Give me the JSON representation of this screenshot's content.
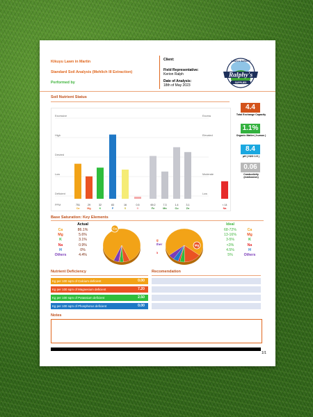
{
  "header": {
    "lawn": "Kikuyu Lawn in Martin",
    "analysis": "Standard Soil Analysis (Mehlich III Extraction)",
    "performed_by": "Performed by",
    "client_label": "Client:",
    "rep_label": "Field Representative:",
    "rep_value": "Kerion Ralph",
    "date_label": "Date of Analysis:",
    "date_value": "18th of May 2023",
    "logo": {
      "top": "LAWN & GARDEN",
      "main": "Ralphy's",
      "bottom": "SUPPLIES"
    }
  },
  "nutrient_status": {
    "title": "Soil Nutrient Status",
    "left_levels": [
      "Excessive",
      "High",
      "Desired",
      "Low",
      "Deficient",
      "PPM"
    ],
    "right_levels": [
      "Excess",
      "Elevated",
      "Moderate",
      "Low"
    ],
    "colors": {
      "Ca": "#f2a317",
      "Mg": "#ea5323",
      "K": "#2fbd3c",
      "P": "#1f78c6",
      "S": "#f5ec76",
      "B": "#f4a4a4",
      "Fe": "#cacbd2",
      "Mn": "#c4c5cc",
      "Cu": "#c7c8cf",
      "Zn": "#c1c2c9",
      "Na": "#e62a2a"
    }
  },
  "chart_data": {
    "type": "bar",
    "categories": [
      "Ca",
      "Mg",
      "K",
      "P",
      "S",
      "B",
      "Fe",
      "Mn",
      "Cu",
      "Zn",
      "Na"
    ],
    "ppm": [
      "751",
      "29",
      "32",
      "83",
      "16",
      "0.5",
      "69.2",
      "7.3",
      "1.4",
      "3.1",
      "< 14"
    ],
    "levels": [
      1.8,
      1.15,
      1.6,
      3.3,
      1.5,
      0.1,
      2.2,
      1.4,
      2.65,
      2.4,
      0.9
    ],
    "level_scale": [
      "Deficient",
      "Low",
      "Desired",
      "High",
      "Excessive"
    ]
  },
  "kpis": [
    {
      "value": "4.4",
      "label": "Total Exchange Capacity",
      "color": "#d3531b"
    },
    {
      "value": "1.1%",
      "label": "Organic Matter ( humus )",
      "color": "#33b13f"
    },
    {
      "value": "8.4",
      "label": "pH ( H2O 1:5 )",
      "color": "#1ba8e0"
    },
    {
      "value": "0.06",
      "label": "Conductivity (mmhos/cm)",
      "color": "#b8b8b8"
    }
  ],
  "base_saturation": {
    "title": "Base Saturation: Key Elements",
    "actual_header": "Actual",
    "ideal_header": "Ideal",
    "elements": [
      {
        "name": "Ca",
        "actual": "86.1%",
        "ideal": "68-72%",
        "color": "#f2a317"
      },
      {
        "name": "Mg",
        "actual": "5.6%",
        "ideal": "13-16%",
        "color": "#ea5323"
      },
      {
        "name": "K",
        "actual": "3.1%",
        "ideal": "3-5%",
        "color": "#2fbd3c"
      },
      {
        "name": "Na",
        "actual": "0.9%",
        "ideal": "<3%",
        "color": "#e62a2a"
      },
      {
        "name": "H",
        "actual": "0%",
        "ideal": "4.5%",
        "color": "#1f78c6"
      },
      {
        "name": "Others",
        "actual": "4.4%",
        "ideal": "5%",
        "color": "#7a3cb8"
      }
    ],
    "pie_actual": [
      86.1,
      5.6,
      3.1,
      0.9,
      0,
      4.4
    ],
    "pie_ideal": [
      70,
      14.5,
      4,
      1.5,
      4.5,
      5
    ],
    "pie_actual_label": "Ca",
    "pie_ideal_label": "Mg",
    "ideal_side_labels": [
      "Mg",
      "Other",
      "K",
      "Na"
    ]
  },
  "deficiency": {
    "title": "Nutrient Deficiency",
    "rows": [
      {
        "label": "Kg per 100 sqm of Calcium deficient",
        "value": "0.00",
        "color": "#f2a317"
      },
      {
        "label": "Kg per 100 sqm of Magnesium deficient",
        "value": "7.20",
        "color": "#ea5323"
      },
      {
        "label": "Kg per 100 sqm of Potassium deficient",
        "value": "2.50",
        "color": "#2fbd3c"
      },
      {
        "label": "Kg per 100 sqm of Phosphorus deficient",
        "value": "0.00",
        "color": "#1f78c6"
      }
    ]
  },
  "recommendation": {
    "title": "Recomendation"
  },
  "notes": {
    "title": "Notes",
    "body": ""
  },
  "footer": {
    "page": "1/1"
  }
}
